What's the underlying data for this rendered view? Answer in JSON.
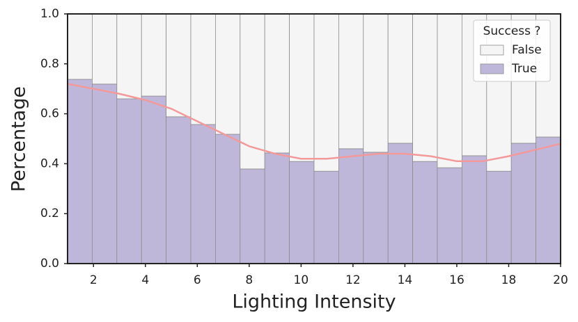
{
  "chart_data": {
    "type": "histogram",
    "x_label": "Lighting Intensity",
    "y_label": "Percentage",
    "bins": [
      1,
      1.95,
      2.9,
      3.85,
      4.8,
      5.75,
      6.7,
      7.65,
      8.6,
      9.55,
      10.5,
      11.45,
      12.4,
      13.35,
      14.3,
      15.25,
      16.2,
      17.15,
      18.1,
      19.05,
      20
    ],
    "series": [
      {
        "name": "True",
        "color": "#bfb7da",
        "values": [
          0.738,
          0.719,
          0.66,
          0.671,
          0.588,
          0.557,
          0.518,
          0.379,
          0.443,
          0.409,
          0.37,
          0.46,
          0.446,
          0.482,
          0.409,
          0.384,
          0.432,
          0.37,
          0.482,
          0.507
        ]
      },
      {
        "name": "False",
        "color": "#f5f5f5",
        "values": [
          0.262,
          0.281,
          0.34,
          0.329,
          0.412,
          0.443,
          0.482,
          0.621,
          0.557,
          0.591,
          0.63,
          0.54,
          0.554,
          0.518,
          0.591,
          0.616,
          0.568,
          0.63,
          0.518,
          0.493
        ]
      }
    ],
    "trend": {
      "color": "#f4999a",
      "x": [
        1,
        2,
        3,
        4,
        5,
        6,
        7,
        8,
        9,
        10,
        11,
        12,
        13,
        14,
        15,
        16,
        17,
        18,
        19,
        20
      ],
      "values": [
        0.72,
        0.7,
        0.68,
        0.655,
        0.62,
        0.57,
        0.52,
        0.47,
        0.44,
        0.42,
        0.42,
        0.43,
        0.44,
        0.44,
        0.43,
        0.41,
        0.41,
        0.43,
        0.455,
        0.48
      ]
    },
    "legend_title": "Success ?",
    "legend": "upper right",
    "xlim": [
      1,
      20
    ],
    "ylim": [
      0,
      1
    ],
    "xticks": [
      2,
      4,
      6,
      8,
      10,
      12,
      14,
      16,
      18,
      20
    ],
    "yticks": [
      {
        "value": 0,
        "label": "0.0"
      },
      {
        "value": 0.2,
        "label": "0.2"
      },
      {
        "value": 0.4,
        "label": "0.4"
      },
      {
        "value": 0.6,
        "label": "0.6"
      },
      {
        "value": 0.8,
        "label": "0.8"
      },
      {
        "value": 1,
        "label": "1.0"
      }
    ]
  }
}
